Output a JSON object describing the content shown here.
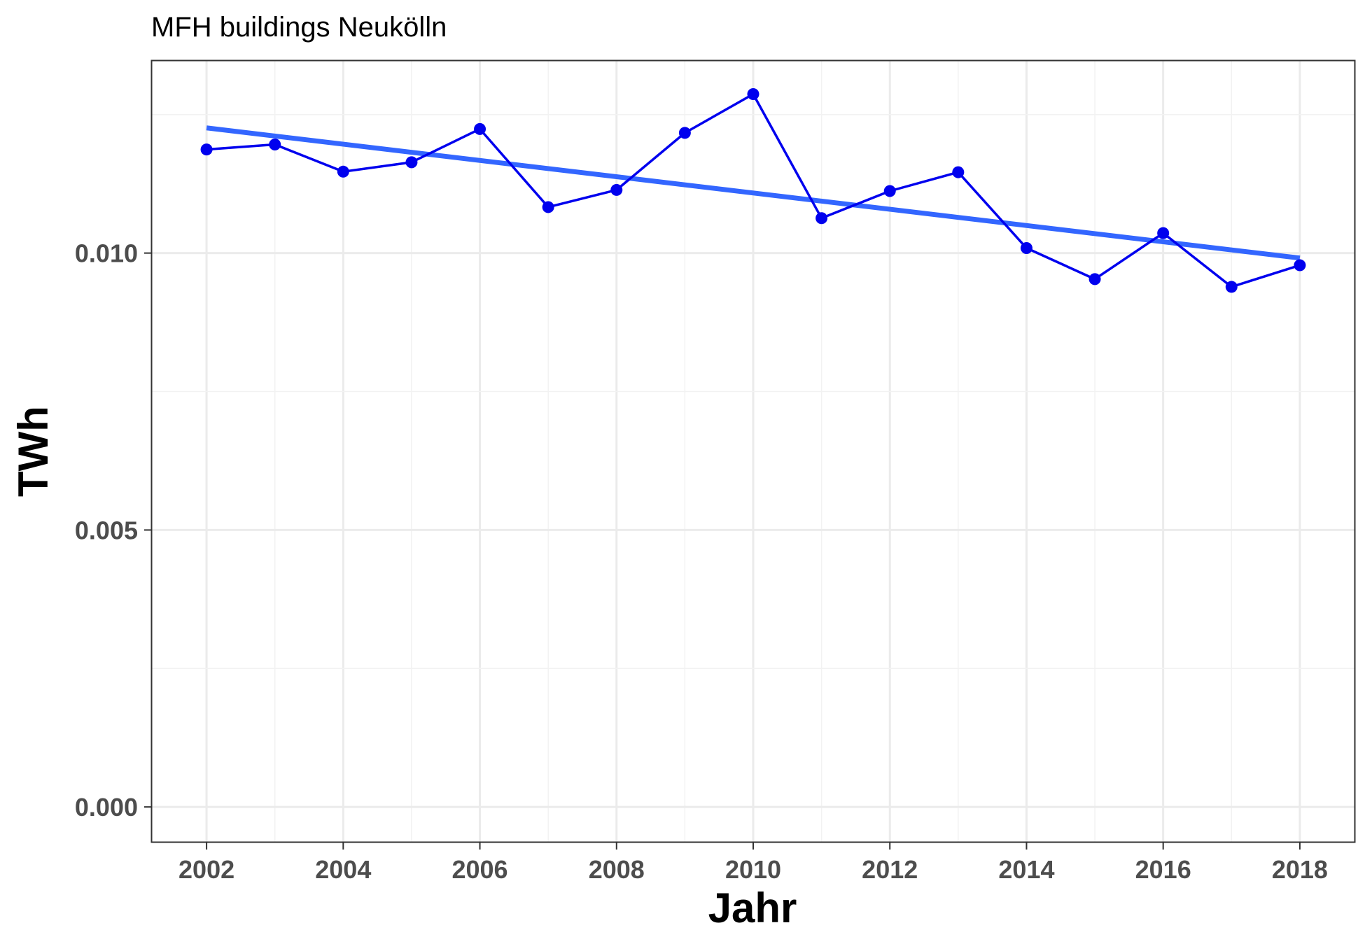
{
  "chart_data": {
    "type": "line",
    "title": "MFH buildings Neukölln",
    "xlabel": "Jahr",
    "ylabel": "TWh",
    "x_ticks": [
      "2002",
      "2004",
      "2006",
      "2008",
      "2010",
      "2012",
      "2014",
      "2016",
      "2018"
    ],
    "y_ticks": [
      "0.000",
      "0.005",
      "0.010"
    ],
    "xlim": [
      2001.2,
      2018.8
    ],
    "ylim": [
      -0.00063,
      0.01347
    ],
    "grid": true,
    "series": [
      {
        "x": [
          2002,
          2003,
          2004,
          2005,
          2006,
          2007,
          2008,
          2009,
          2010,
          2011,
          2012,
          2013,
          2014,
          2015,
          2016,
          2017,
          2018
        ],
        "values": [
          0.01187,
          0.01196,
          0.01147,
          0.01164,
          0.01224,
          0.01083,
          0.01114,
          0.01217,
          0.01287,
          0.01063,
          0.01112,
          0.01146,
          0.01009,
          0.00953,
          0.01036,
          0.00939,
          0.00978
        ],
        "color": "#0000ee"
      }
    ],
    "trend_line": {
      "x": [
        2002,
        2018
      ],
      "values": [
        0.01226,
        0.00991
      ],
      "color": "#3366ff"
    }
  }
}
